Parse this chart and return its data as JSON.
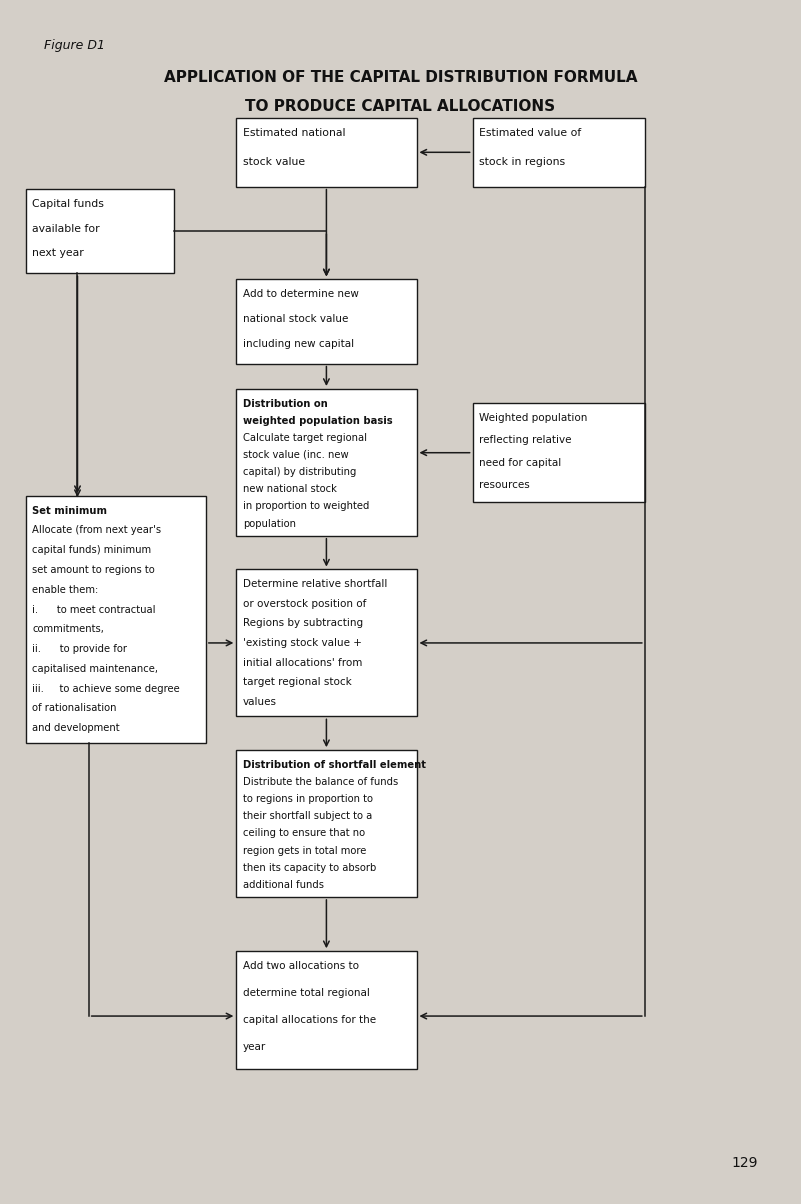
{
  "bg_color": "#d4cfc8",
  "box_bg": "#ffffff",
  "box_edge": "#1a1a1a",
  "figure_label": "Figure D1",
  "title_line1": "APPLICATION OF THE CAPITAL DISTRIBUTION FORMULA",
  "title_line2": "TO PRODUCE CAPITAL ALLOCATIONS",
  "page_number": "129"
}
